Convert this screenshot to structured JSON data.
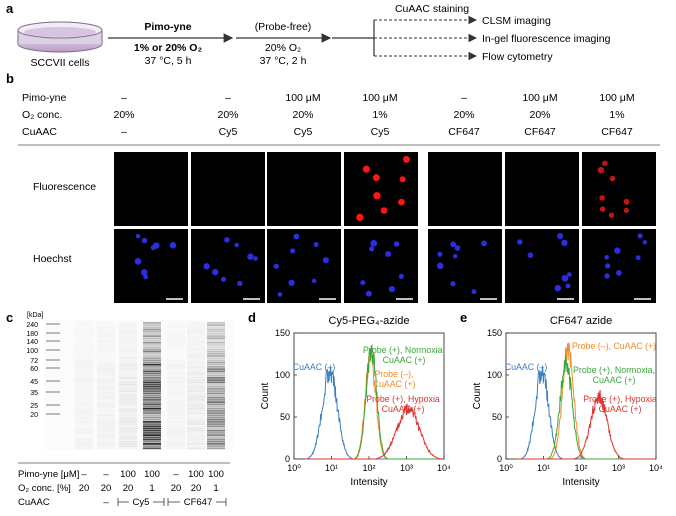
{
  "panel_labels": {
    "a": "a",
    "b": "b",
    "c": "c",
    "d": "d",
    "e": "e"
  },
  "workflow": {
    "cells": "SCCVII cells",
    "step1": {
      "title": "Pimo-yne",
      "cond": "1% or 20% O₂",
      "time": "37 °C, 5 h"
    },
    "step2": {
      "title": "(Probe-free)",
      "cond": "20% O₂",
      "time": "37 °C, 2 h"
    },
    "staining": "CuAAC staining",
    "outputs": [
      "CLSM imaging",
      "In-gel fluorescence imaging",
      "Flow cytometry"
    ]
  },
  "imaging": {
    "row_headers": {
      "pimo": "Pimo-yne",
      "o2": "O₂ conc.",
      "cuaac": "CuAAC"
    },
    "columns": [
      {
        "pimo": "–",
        "o2": "20%",
        "cuaac": "–"
      },
      {
        "pimo": "–",
        "o2": "20%",
        "cuaac": "Cy5"
      },
      {
        "pimo": "100 μM",
        "o2": "20%",
        "cuaac": "Cy5"
      },
      {
        "pimo": "100 μM",
        "o2": "1%",
        "cuaac": "Cy5"
      },
      {
        "pimo": "–",
        "o2": "20%",
        "cuaac": "CF647"
      },
      {
        "pimo": "100 μM",
        "o2": "20%",
        "cuaac": "CF647"
      },
      {
        "pimo": "100 μM",
        "o2": "1%",
        "cuaac": "CF647"
      }
    ],
    "row_labels": {
      "fluorescence": "Fluorescence",
      "hoechst": "Hoechst"
    }
  },
  "gel": {
    "unit": "[kDa]",
    "ladder": [
      "240",
      "180",
      "140",
      "100",
      "72",
      "60",
      "45",
      "35",
      "25",
      "20"
    ],
    "pimo_label": "Pimo-yne [μM]",
    "pimo": [
      "–",
      "–",
      "100",
      "100",
      "–",
      "100",
      "100"
    ],
    "o2_label": "O₂ conc. [%]",
    "o2": [
      "20",
      "20",
      "20",
      "1",
      "20",
      "20",
      "1"
    ],
    "cuaac_label": "CuAAC",
    "cuaac_dash": "–",
    "cy5": "Cy5",
    "cf647": "CF647"
  },
  "chart_data": [
    {
      "type": "line",
      "title": "Cy5-PEG₄-azide",
      "xlabel": "Intensity",
      "ylabel": "Count",
      "xscale": "log",
      "xlim": [
        1,
        10000
      ],
      "ylim": [
        0,
        150
      ],
      "xticks": [
        "10⁰",
        "10¹",
        "10²",
        "10³",
        "10⁴"
      ],
      "yticks": [
        "0",
        "50",
        "100",
        "150"
      ],
      "series": [
        {
          "name": "CuAAC (–)",
          "color": "#3a7fc1",
          "peak_x": 9,
          "peak_y": 105,
          "width": 0.2
        },
        {
          "name": "Probe (–), CuAAC (+)",
          "color": "#f28c28",
          "peak_x": 110,
          "peak_y": 125,
          "width": 0.14
        },
        {
          "name": "Probe (+), Normoxia, CuAAC (+)",
          "color": "#3aa63a",
          "peak_x": 115,
          "peak_y": 130,
          "width": 0.14
        },
        {
          "name": "Probe (+), Hypoxia CuAAC (+)",
          "color": "#e0312d",
          "peak_x": 1100,
          "peak_y": 60,
          "width": 0.3
        }
      ],
      "annotations": [
        "CuAAC (–)",
        "Probe (+), Normoxia,",
        "CuAAC (+)",
        "Probe (–),",
        "CuAAC (+)",
        "Probe (+), Hypoxia",
        "CuAAC (+)"
      ]
    },
    {
      "type": "line",
      "title": "CF647 azide",
      "xlabel": "Intensity",
      "ylabel": "Count",
      "xscale": "log",
      "xlim": [
        1,
        10000
      ],
      "ylim": [
        0,
        150
      ],
      "xticks": [
        "10⁰",
        "10¹",
        "10²",
        "10³",
        "10⁴"
      ],
      "yticks": [
        "0",
        "50",
        "100",
        "150"
      ],
      "series": [
        {
          "name": "CuAAC (–)",
          "color": "#3a7fc1",
          "peak_x": 9,
          "peak_y": 105,
          "width": 0.18
        },
        {
          "name": "Probe (–), CuAAC (+)",
          "color": "#f28c28",
          "peak_x": 45,
          "peak_y": 132,
          "width": 0.15
        },
        {
          "name": "Probe (+), Normoxia, CuAAC (+)",
          "color": "#3aa63a",
          "peak_x": 40,
          "peak_y": 115,
          "width": 0.16
        },
        {
          "name": "Probe (+), Hypoxia CuAAC (+)",
          "color": "#e0312d",
          "peak_x": 300,
          "peak_y": 75,
          "width": 0.22
        }
      ],
      "annotations": [
        "CuAAC (–)",
        "Probe (–), CuAAC (+)",
        "Probe (+), Normoxia,",
        "CuAAC (+)",
        "Probe (+), Hypoxia",
        "CuAAC (+)"
      ]
    }
  ]
}
